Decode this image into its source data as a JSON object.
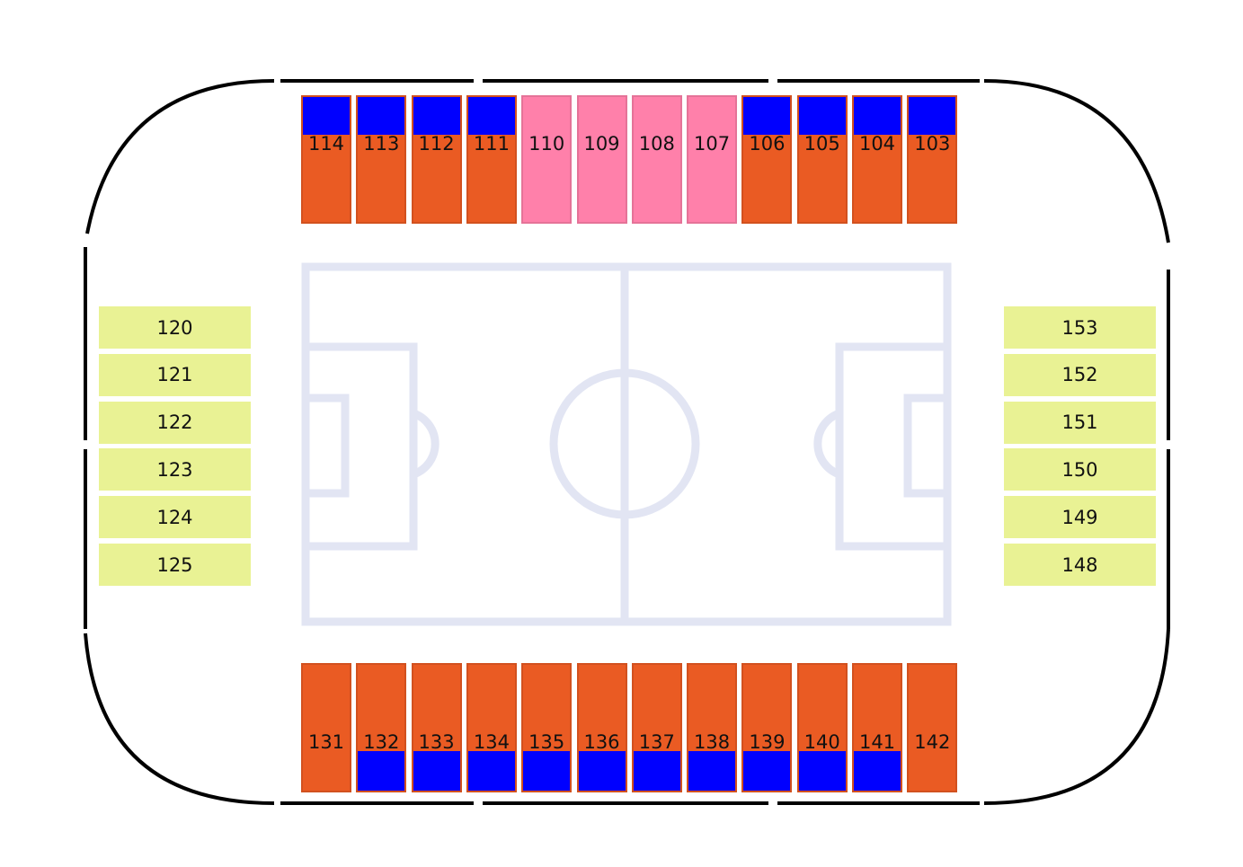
{
  "colors": {
    "outline": "#000000",
    "field_lines": "#e2e5f3",
    "standard": "#ea5b23",
    "premium": "#0000ff",
    "club": "#ff80aa",
    "end_zone": "#e9f294"
  },
  "top_sections": [
    {
      "label": "114",
      "type": "standard_premium"
    },
    {
      "label": "113",
      "type": "standard_premium"
    },
    {
      "label": "112",
      "type": "standard_premium"
    },
    {
      "label": "111",
      "type": "standard_premium"
    },
    {
      "label": "110",
      "type": "club"
    },
    {
      "label": "109",
      "type": "club"
    },
    {
      "label": "108",
      "type": "club"
    },
    {
      "label": "107",
      "type": "club"
    },
    {
      "label": "106",
      "type": "standard_premium"
    },
    {
      "label": "105",
      "type": "standard_premium"
    },
    {
      "label": "104",
      "type": "standard_premium"
    },
    {
      "label": "103",
      "type": "standard_premium"
    }
  ],
  "bottom_sections": [
    {
      "label": "131",
      "type": "standard"
    },
    {
      "label": "132",
      "type": "standard_premium"
    },
    {
      "label": "133",
      "type": "standard_premium"
    },
    {
      "label": "134",
      "type": "standard_premium"
    },
    {
      "label": "135",
      "type": "standard_premium"
    },
    {
      "label": "136",
      "type": "standard_premium"
    },
    {
      "label": "137",
      "type": "standard_premium"
    },
    {
      "label": "138",
      "type": "standard_premium"
    },
    {
      "label": "139",
      "type": "standard_premium"
    },
    {
      "label": "140",
      "type": "standard_premium"
    },
    {
      "label": "141",
      "type": "standard_premium"
    },
    {
      "label": "142",
      "type": "standard"
    }
  ],
  "left_sections": [
    {
      "label": "120"
    },
    {
      "label": "121"
    },
    {
      "label": "122"
    },
    {
      "label": "123"
    },
    {
      "label": "124"
    },
    {
      "label": "125"
    }
  ],
  "right_sections": [
    {
      "label": "153"
    },
    {
      "label": "152"
    },
    {
      "label": "151"
    },
    {
      "label": "150"
    },
    {
      "label": "149"
    },
    {
      "label": "148"
    }
  ]
}
